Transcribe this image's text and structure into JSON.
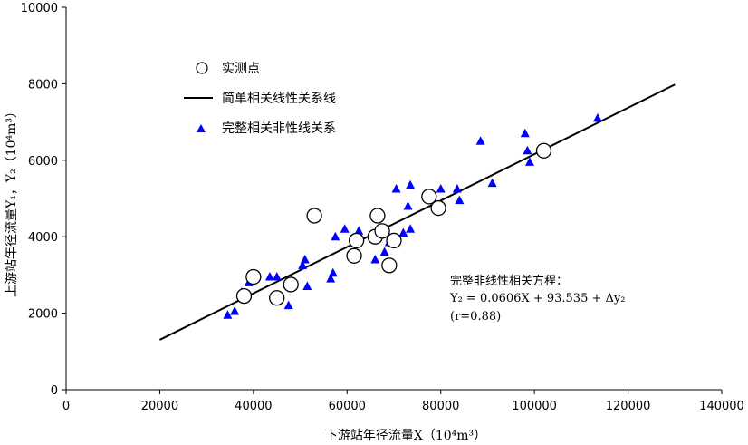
{
  "chart_data": {
    "type": "scatter",
    "xlabel": "下游站年径流量X（10⁴m³）",
    "ylabel": "上游站年径流量Y₁，Y₂（10⁴m³）",
    "xlim": [
      0,
      140000
    ],
    "ylim": [
      0,
      10000
    ],
    "x_ticks": [
      0,
      20000,
      40000,
      60000,
      80000,
      100000,
      120000,
      140000
    ],
    "y_ticks": [
      0,
      2000,
      4000,
      6000,
      8000,
      10000
    ],
    "grid": false,
    "legend_placement": "top-left",
    "colors": {
      "triangles": "#0000ff",
      "circles": "#000000",
      "line": "#000000"
    },
    "series": [
      {
        "name": "实测点",
        "kind": "open-circle",
        "points": [
          [
            38000,
            2450
          ],
          [
            40000,
            2950
          ],
          [
            45000,
            2400
          ],
          [
            48000,
            2750
          ],
          [
            53000,
            4550
          ],
          [
            61500,
            3500
          ],
          [
            62000,
            3900
          ],
          [
            66000,
            4000
          ],
          [
            66500,
            4550
          ],
          [
            67500,
            4150
          ],
          [
            69000,
            3250
          ],
          [
            70000,
            3900
          ],
          [
            77500,
            5050
          ],
          [
            79500,
            4750
          ],
          [
            102000,
            6250
          ]
        ]
      },
      {
        "name": "简单相关线性关系线",
        "kind": "line",
        "points": [
          [
            20000,
            1305
          ],
          [
            130000,
            7980
          ]
        ]
      },
      {
        "name": "完整相关非性线关系",
        "kind": "triangle",
        "points": [
          [
            34500,
            1950
          ],
          [
            36000,
            2050
          ],
          [
            37500,
            2550
          ],
          [
            39000,
            2800
          ],
          [
            43500,
            2950
          ],
          [
            45000,
            2950
          ],
          [
            47500,
            2200
          ],
          [
            50500,
            3250
          ],
          [
            51000,
            3400
          ],
          [
            51500,
            2700
          ],
          [
            56500,
            2900
          ],
          [
            57000,
            3050
          ],
          [
            57500,
            4000
          ],
          [
            59500,
            4200
          ],
          [
            61500,
            3600
          ],
          [
            62000,
            3550
          ],
          [
            62500,
            4150
          ],
          [
            66000,
            3400
          ],
          [
            67000,
            4100
          ],
          [
            68000,
            3600
          ],
          [
            69000,
            3850
          ],
          [
            70500,
            5250
          ],
          [
            72000,
            4100
          ],
          [
            73000,
            4800
          ],
          [
            73500,
            5350
          ],
          [
            73500,
            4200
          ],
          [
            80000,
            5250
          ],
          [
            83500,
            5250
          ],
          [
            84000,
            4950
          ],
          [
            88500,
            6500
          ],
          [
            91000,
            5400
          ],
          [
            98000,
            6700
          ],
          [
            98500,
            6250
          ],
          [
            99000,
            5950
          ],
          [
            113500,
            7100
          ]
        ]
      }
    ],
    "annotation": {
      "title": "完整非线性相关方程：",
      "equation": "Y₂ = 0.0606X + 93.535 + Δy₂",
      "r": "(r=0.88)"
    }
  }
}
